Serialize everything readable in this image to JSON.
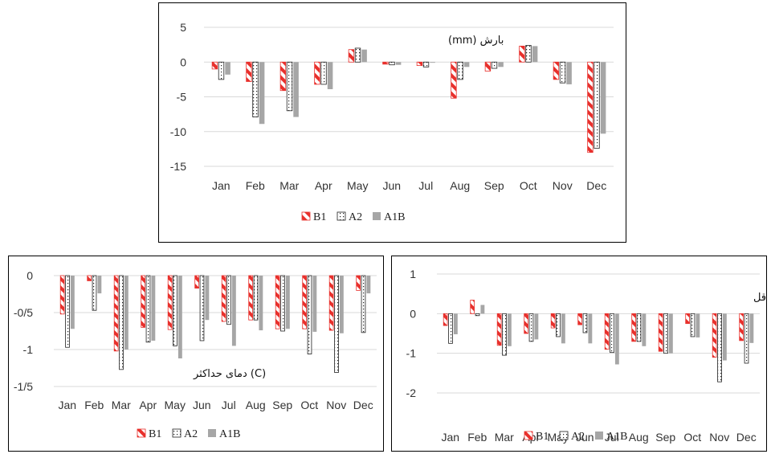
{
  "patterns": {
    "B1": "red-white-diagonal",
    "A2": "white-black-dots",
    "A1B": "solid-gray"
  },
  "colors": {
    "B1": "#e8302c",
    "A2": "#222222",
    "A1B": "#a6a6a6",
    "grid": "#d9d9d9"
  },
  "chart_data": [
    {
      "type": "bar",
      "annotation": "بارش (mm)",
      "categories": [
        "Jan",
        "Feb",
        "Mar",
        "Apr",
        "May",
        "Jun",
        "Jul",
        "Aug",
        "Sep",
        "Oct",
        "Nov",
        "Dec"
      ],
      "ylim": [
        -15,
        5
      ],
      "yticks": [
        5,
        0,
        -5,
        -10,
        -15
      ],
      "ytick_labels": [
        "5",
        "0",
        "-5",
        "-10",
        "-15"
      ],
      "series": [
        {
          "name": "B1",
          "values": [
            -1.0,
            -2.8,
            -4.1,
            -3.2,
            1.8,
            -0.3,
            -0.5,
            -5.2,
            -1.3,
            2.3,
            -2.5,
            -13.0
          ]
        },
        {
          "name": "A2",
          "values": [
            -2.5,
            -7.9,
            -7.0,
            -3.2,
            2.0,
            -0.4,
            -0.7,
            -2.5,
            -0.9,
            2.4,
            -3.0,
            -12.4
          ]
        },
        {
          "name": "A1B",
          "values": [
            -1.8,
            -8.9,
            -7.9,
            -3.9,
            1.8,
            -0.4,
            -0.1,
            -0.7,
            -0.7,
            2.3,
            -3.2,
            -10.3
          ]
        }
      ],
      "legend": "bottom"
    },
    {
      "type": "bar",
      "annotation": "(C) دمای حداکثر",
      "categories": [
        "Jan",
        "Feb",
        "Mar",
        "Apr",
        "May",
        "Jun",
        "Jul",
        "Aug",
        "Sep",
        "Oct",
        "Nov",
        "Dec"
      ],
      "ylim": [
        -1.5,
        0
      ],
      "yticks": [
        0,
        -0.5,
        -1,
        -1.5
      ],
      "ytick_labels": [
        "0",
        "-0/5",
        "-1",
        "-1/5"
      ],
      "series": [
        {
          "name": "B1",
          "values": [
            -0.52,
            -0.07,
            -1.02,
            -0.7,
            -0.73,
            -0.17,
            -0.62,
            -0.6,
            -0.72,
            -0.72,
            -0.74,
            -0.2
          ]
        },
        {
          "name": "A2",
          "values": [
            -0.97,
            -0.47,
            -1.27,
            -0.9,
            -0.95,
            -0.88,
            -0.66,
            -0.6,
            -0.75,
            -1.06,
            -1.31,
            -0.77
          ]
        },
        {
          "name": "A1B",
          "values": [
            -0.72,
            -0.24,
            -1.0,
            -0.88,
            -1.12,
            -0.6,
            -0.95,
            -0.74,
            -0.72,
            -0.76,
            -0.78,
            -0.24
          ]
        }
      ],
      "legend": "bottom"
    },
    {
      "type": "bar",
      "annotation": "(C) دمای حداقل",
      "categories": [
        "Jan",
        "Feb",
        "Mar",
        "Apr",
        "May",
        "Jun",
        "Jul",
        "Aug",
        "Sep",
        "Oct",
        "Nov",
        "Dec"
      ],
      "ylim": [
        -2,
        1
      ],
      "yticks": [
        1,
        0,
        -1,
        -2
      ],
      "ytick_labels": [
        "1",
        "0",
        "-1",
        "-2"
      ],
      "series": [
        {
          "name": "B1",
          "values": [
            -0.3,
            0.34,
            -0.8,
            -0.5,
            -0.36,
            -0.28,
            -0.9,
            -0.7,
            -0.95,
            -0.25,
            -1.1,
            -0.68
          ]
        },
        {
          "name": "A2",
          "values": [
            -0.75,
            -0.05,
            -1.05,
            -0.7,
            -0.58,
            -0.48,
            -0.98,
            -0.7,
            -1.0,
            -0.58,
            -1.72,
            -1.25
          ]
        },
        {
          "name": "A1B",
          "values": [
            -0.52,
            0.22,
            -0.82,
            -0.65,
            -0.75,
            -0.75,
            -1.28,
            -0.82,
            -1.0,
            -0.6,
            -1.18,
            -0.74
          ]
        }
      ],
      "legend": "bottom"
    }
  ]
}
